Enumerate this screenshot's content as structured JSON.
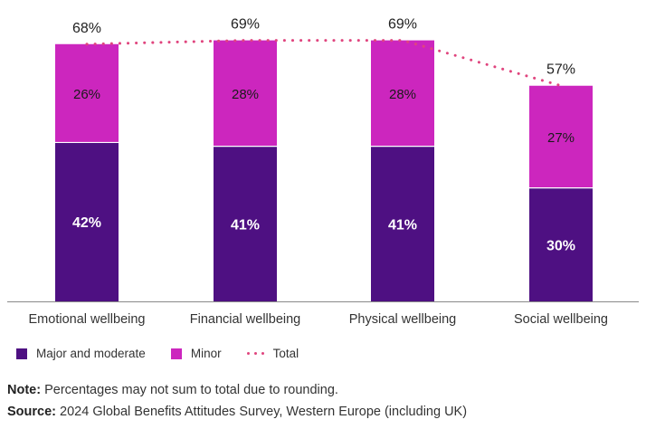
{
  "chart_data": {
    "type": "bar",
    "stacked": true,
    "categories": [
      "Emotional wellbeing",
      "Financial wellbeing",
      "Physical wellbeing",
      "Social wellbeing"
    ],
    "series": [
      {
        "name": "Major and moderate",
        "values": [
          42,
          41,
          41,
          30
        ],
        "color": "#4e1082",
        "labels": [
          "42%",
          "41%",
          "41%",
          "30%"
        ]
      },
      {
        "name": "Minor",
        "values": [
          26,
          28,
          28,
          27
        ],
        "color": "#cc26be",
        "labels": [
          "26%",
          "28%",
          "28%",
          "27%"
        ]
      }
    ],
    "total": {
      "name": "Total",
      "values": [
        68,
        69,
        69,
        57
      ],
      "color": "#e0457e",
      "labels": [
        "68%",
        "69%",
        "69%",
        "57%"
      ]
    },
    "ylim": [
      0,
      100
    ],
    "grid": false,
    "legend": "bottom-left"
  },
  "legend": {
    "major_label": "Major and moderate",
    "minor_label": "Minor",
    "total_label": "Total",
    "major_color": "#4e1082",
    "minor_color": "#cc26be",
    "total_color": "#e0457e"
  },
  "footnotes": {
    "note_label": "Note:",
    "note_text": " Percentages may not sum to total due to rounding.",
    "source_label": "Source:",
    "source_text": " 2024 Global Benefits Attitudes Survey, Western Europe (including UK)"
  }
}
